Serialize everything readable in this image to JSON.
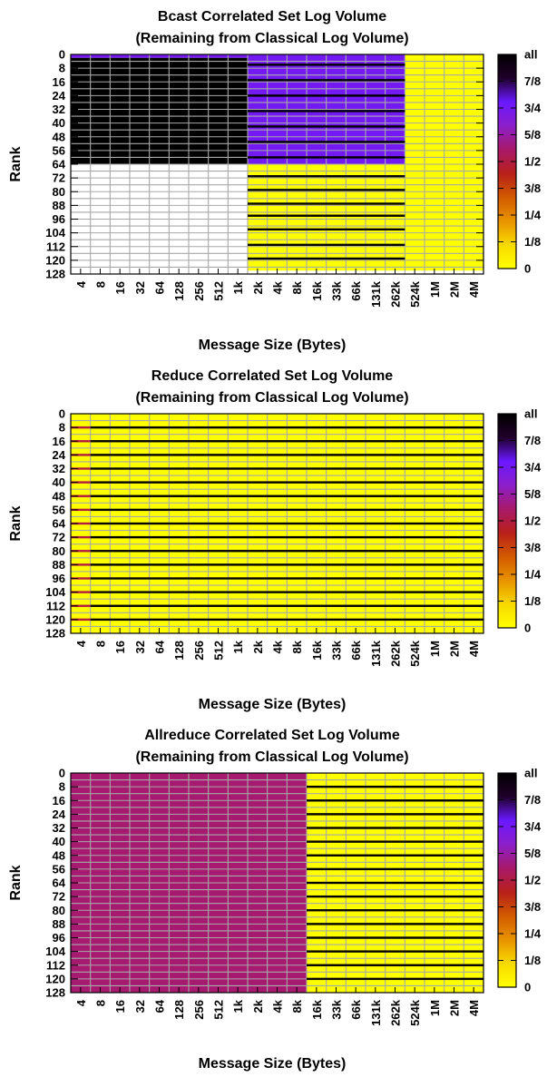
{
  "color_scale": {
    "stops": [
      "#ffff00",
      "#f7d900",
      "#e89200",
      "#d25a00",
      "#b8201b",
      "#a81a6a",
      "#8c1fc9",
      "#6a18ff",
      "#20002a",
      "#000000"
    ],
    "legend_labels": [
      "all",
      "7/8",
      "3/4",
      "5/8",
      "1/2",
      "3/8",
      "1/4",
      "1/8",
      "0"
    ]
  },
  "chart_data": [
    {
      "type": "heatmap",
      "title_line1": "Bcast Correlated Set Log Volume",
      "title_line2": "(Remaining from Classical Log Volume)",
      "xlabel": "Message Size (Bytes)",
      "ylabel": "Rank",
      "x_categories": [
        "4",
        "8",
        "16",
        "32",
        "64",
        "128",
        "256",
        "512",
        "1k",
        "2k",
        "4k",
        "8k",
        "16k",
        "33k",
        "66k",
        "131k",
        "262k",
        "524k",
        "1M",
        "2M",
        "4M"
      ],
      "y_ticks": [
        "0",
        "8",
        "16",
        "24",
        "32",
        "40",
        "48",
        "56",
        "64",
        "72",
        "80",
        "88",
        "96",
        "104",
        "112",
        "120",
        "128"
      ],
      "y_range": [
        0,
        128
      ],
      "grid": true,
      "regions": [
        {
          "x_from": "4",
          "x_to": "1k",
          "rank_from": 0,
          "rank_to": 2,
          "value": 0.75
        },
        {
          "x_from": "4",
          "x_to": "1k",
          "rank_from": 2,
          "rank_to": 64,
          "value": 1.0
        },
        {
          "x_from": "4",
          "x_to": "1k",
          "rank_from": 64,
          "rank_to": 128,
          "value": null
        },
        {
          "x_from": "2k",
          "x_to": "262k",
          "rank_from": 0,
          "rank_to": 64,
          "value": 0.75
        },
        {
          "x_from": "2k",
          "x_to": "262k",
          "rank_from": 64,
          "rank_to": 126,
          "value": 0
        },
        {
          "x_from": "524k",
          "x_to": "4M",
          "rank_from": 0,
          "rank_to": 126,
          "value": 0
        }
      ],
      "dark_lines": [
        {
          "x_from": "2k",
          "x_to": "262k",
          "ranks": [
            6,
            15,
            24,
            33,
            42,
            51,
            60,
            71,
            79,
            87,
            94,
            102,
            111,
            119
          ],
          "value": 1.0
        }
      ]
    },
    {
      "type": "heatmap",
      "title_line1": "Reduce Correlated Set Log Volume",
      "title_line2": "(Remaining from Classical Log Volume)",
      "xlabel": "Message Size (Bytes)",
      "ylabel": "Rank",
      "x_categories": [
        "4",
        "8",
        "16",
        "32",
        "64",
        "128",
        "256",
        "512",
        "1k",
        "2k",
        "4k",
        "8k",
        "16k",
        "33k",
        "66k",
        "131k",
        "262k",
        "524k",
        "1M",
        "2M",
        "4M"
      ],
      "y_ticks": [
        "0",
        "8",
        "16",
        "24",
        "32",
        "40",
        "48",
        "56",
        "64",
        "72",
        "80",
        "88",
        "96",
        "104",
        "112",
        "120",
        "128"
      ],
      "y_range": [
        0,
        128
      ],
      "grid": true,
      "regions": [
        {
          "x_from": "4",
          "x_to": "4M",
          "rank_from": 0,
          "rank_to": 128,
          "value": 0
        }
      ],
      "dark_lines": [
        {
          "x_from": "8",
          "x_to": "4M",
          "ranks": [
            8,
            16,
            24,
            32,
            40,
            48,
            56,
            64,
            72,
            80,
            88,
            96,
            104,
            112,
            120
          ],
          "value": 1.0
        },
        {
          "x_from": "4",
          "x_to": "4",
          "ranks": [
            8,
            16,
            24,
            32,
            40,
            48,
            56,
            64,
            72,
            80,
            88,
            96,
            104,
            112,
            120
          ],
          "value": 0.5
        }
      ]
    },
    {
      "type": "heatmap",
      "title_line1": "Allreduce Correlated Set Log Volume",
      "title_line2": "(Remaining from Classical Log Volume)",
      "xlabel": "Message Size (Bytes)",
      "ylabel": "Rank",
      "x_categories": [
        "4",
        "8",
        "16",
        "32",
        "64",
        "128",
        "256",
        "512",
        "1k",
        "2k",
        "4k",
        "8k",
        "16k",
        "33k",
        "66k",
        "131k",
        "262k",
        "524k",
        "1M",
        "2M",
        "4M"
      ],
      "y_ticks": [
        "0",
        "8",
        "16",
        "24",
        "32",
        "40",
        "48",
        "56",
        "64",
        "72",
        "80",
        "88",
        "96",
        "104",
        "112",
        "120",
        "128"
      ],
      "y_range": [
        0,
        128
      ],
      "grid": true,
      "regions": [
        {
          "x_from": "4",
          "x_to": "8k",
          "rank_from": 0,
          "rank_to": 128,
          "value": 0.5625
        },
        {
          "x_from": "16k",
          "x_to": "4M",
          "rank_from": 0,
          "rank_to": 128,
          "value": 0
        }
      ],
      "dark_lines": [
        {
          "x_from": "16k",
          "x_to": "4M",
          "ranks": [
            8,
            16,
            24,
            32,
            40,
            48,
            56,
            64,
            72,
            80,
            88,
            96,
            104,
            112,
            120
          ],
          "value": 1.0
        }
      ]
    }
  ]
}
